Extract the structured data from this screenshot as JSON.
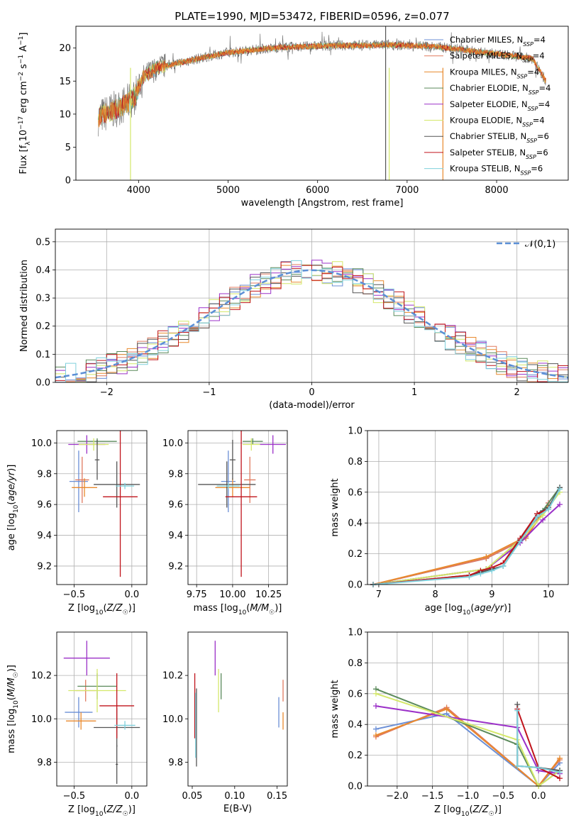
{
  "figure_title": "PLATE=1990, MJD=53472, FIBERID=0596, z=0.077",
  "colors": {
    "Chabrier MILES": "#6b8fd6",
    "Salpeter MILES": "#e07a5f",
    "Kroupa MILES": "#e8892d",
    "Chabrier ELODIE": "#5b8a5b",
    "Salpeter ELODIE": "#9b30c8",
    "Kroupa ELODIE": "#d4e86a",
    "Chabrier STELIB": "#555555",
    "Salpeter STELIB": "#c0141c",
    "Kroupa STELIB": "#7fd0dc",
    "gaussian": "#5b8fd6"
  },
  "legend_labels": [
    "Chabrier MILES, N_SSP=4",
    "Salpeter MILES, N_SSP=4",
    "Kroupa MILES, N_SSP=4",
    "Chabrier ELODIE, N_SSP=4",
    "Salpeter ELODIE, N_SSP=4",
    "Kroupa ELODIE, N_SSP=4",
    "Chabrier STELIB, N_SSP=6",
    "Salpeter STELIB, N_SSP=6",
    "Kroupa STELIB, N_SSP=6"
  ],
  "chart_data": [
    {
      "id": "spectrum",
      "type": "line",
      "title": "PLATE=1990, MJD=53472, FIBERID=0596, z=0.077",
      "xlabel": "wavelength [Angstrom, rest frame]",
      "ylabel": "Flux [f_λ 10^-17 erg cm^-2 s^-1 A^-1]",
      "xlim": [
        3300,
        8800
      ],
      "ylim": [
        0,
        23.3
      ],
      "xticks": [
        4000,
        5000,
        6000,
        7000,
        8000
      ],
      "yticks": [
        0,
        5,
        10,
        15,
        20
      ],
      "spectrum_envelope": {
        "x": [
          3550,
          3650,
          3750,
          3850,
          3950,
          4050,
          4200,
          4400,
          4600,
          4800,
          5000,
          5200,
          5400,
          5600,
          5800,
          6000,
          6200,
          6400,
          6600,
          6800,
          7000,
          7200,
          7400,
          7600,
          7800,
          8000,
          8200,
          8400,
          8550
        ],
        "y": [
          9.5,
          10.2,
          10.8,
          11.5,
          12.5,
          15.5,
          17.0,
          17.6,
          18.2,
          18.8,
          19.3,
          19.6,
          19.9,
          20.1,
          20.2,
          20.3,
          20.4,
          20.4,
          20.4,
          20.5,
          20.4,
          20.3,
          20.1,
          19.8,
          19.4,
          19.1,
          18.8,
          18.4,
          15.0
        ]
      },
      "legend": "top-right"
    },
    {
      "id": "residuals",
      "type": "histogram",
      "xlabel": "(data-model)/error",
      "ylabel": "Normed distribution",
      "xlim": [
        -2.5,
        2.5
      ],
      "ylim": [
        0,
        0.545
      ],
      "xticks": [
        -2,
        -1,
        0,
        1,
        2
      ],
      "yticks": [
        0.0,
        0.1,
        0.2,
        0.3,
        0.4,
        0.5
      ],
      "bin_width": 0.1,
      "reference_curve": "𝒩(0,1)",
      "legend": "top-right"
    },
    {
      "id": "age_vs_Z",
      "type": "errorbar",
      "xlabel": "Z [log10(Z/Z☉)]",
      "ylabel": "age [log10(age/yr)]",
      "xlim": [
        -0.65,
        0.13
      ],
      "ylim": [
        9.08,
        10.08
      ],
      "xticks": [
        -0.5,
        0.0
      ],
      "yticks": [
        9.2,
        9.4,
        9.6,
        9.8,
        10.0
      ],
      "points": [
        {
          "series": "Chabrier MILES",
          "x": -0.46,
          "y": 9.75,
          "xerr": 0.08,
          "yerr": 0.2
        },
        {
          "series": "Salpeter MILES",
          "x": -0.43,
          "y": 9.76,
          "xerr": 0.06,
          "yerr": 0.15
        },
        {
          "series": "Kroupa MILES",
          "x": -0.41,
          "y": 9.71,
          "xerr": 0.11,
          "yerr": 0.06
        },
        {
          "series": "Chabrier ELODIE",
          "x": -0.3,
          "y": 10.01,
          "xerr": 0.17,
          "yerr": 0.02
        },
        {
          "series": "Salpeter ELODIE",
          "x": -0.39,
          "y": 9.99,
          "xerr": 0.16,
          "yerr": 0.06
        },
        {
          "series": "Kroupa ELODIE",
          "x": -0.33,
          "y": 9.99,
          "xerr": 0.13,
          "yerr": 0.04
        },
        {
          "series": "Chabrier STELIB",
          "x": -0.13,
          "y": 9.73,
          "xerr": 0.2,
          "yerr": 0.15
        },
        {
          "series": "Salpeter STELIB",
          "x": -0.1,
          "y": 9.65,
          "xerr": 0.15,
          "yerr": 0.52
        },
        {
          "series": "Kroupa STELIB",
          "x": -0.06,
          "y": 9.72,
          "xerr": 0.08,
          "yerr": 0.02
        },
        {
          "series": "Chabrier STELIB",
          "x": -0.3,
          "y": 9.89,
          "xerr": 0.02,
          "yerr": 0.13
        }
      ]
    },
    {
      "id": "age_vs_mass",
      "type": "errorbar",
      "xlabel": "mass [log10(M/M☉)]",
      "ylabel": "",
      "xlim": [
        9.69,
        10.38
      ],
      "ylim": [
        9.08,
        10.08
      ],
      "xticks": [
        9.75,
        10.0,
        10.25
      ],
      "yticks": [
        9.2,
        9.4,
        9.6,
        9.8,
        10.0
      ],
      "points": [
        {
          "series": "Chabrier MILES",
          "x": 9.97,
          "y": 9.75,
          "xerr": 0.05,
          "yerr": 0.2
        },
        {
          "series": "Salpeter MILES",
          "x": 10.12,
          "y": 9.76,
          "xerr": 0.04,
          "yerr": 0.15
        },
        {
          "series": "Kroupa MILES",
          "x": 10.0,
          "y": 9.71,
          "xerr": 0.12,
          "yerr": 0.06
        },
        {
          "series": "Chabrier ELODIE",
          "x": 10.14,
          "y": 10.01,
          "xerr": 0.07,
          "yerr": 0.02
        },
        {
          "series": "Salpeter ELODIE",
          "x": 10.28,
          "y": 9.99,
          "xerr": 0.09,
          "yerr": 0.06
        },
        {
          "series": "Kroupa ELODIE",
          "x": 10.13,
          "y": 9.99,
          "xerr": 0.06,
          "yerr": 0.04
        },
        {
          "series": "Chabrier STELIB",
          "x": 9.96,
          "y": 9.73,
          "xerr": 0.2,
          "yerr": 0.15
        },
        {
          "series": "Salpeter STELIB",
          "x": 10.06,
          "y": 9.65,
          "xerr": 0.11,
          "yerr": 0.52
        },
        {
          "series": "Kroupa STELIB",
          "x": 9.97,
          "y": 9.72,
          "xerr": 0.08,
          "yerr": 0.02
        },
        {
          "series": "Chabrier STELIB",
          "x": 10.0,
          "y": 9.89,
          "xerr": 0.02,
          "yerr": 0.13
        }
      ]
    },
    {
      "id": "weight_vs_age",
      "type": "line",
      "xlabel": "age [log10(age/yr)]",
      "ylabel": "mass weight",
      "xlim": [
        6.8,
        10.35
      ],
      "ylim": [
        0,
        1.0
      ],
      "xticks": [
        7,
        8,
        9,
        10
      ],
      "yticks": [
        0.0,
        0.2,
        0.4,
        0.6,
        0.8,
        1.0
      ],
      "series": [
        {
          "name": "Chabrier MILES",
          "x": [
            6.9,
            8.9,
            9.6,
            10.0
          ],
          "y": [
            0.0,
            0.17,
            0.3,
            0.53
          ]
        },
        {
          "name": "Salpeter MILES",
          "x": [
            6.9,
            8.9,
            9.6,
            10.0
          ],
          "y": [
            0.0,
            0.17,
            0.3,
            0.53
          ]
        },
        {
          "name": "Kroupa MILES",
          "x": [
            6.9,
            8.9,
            9.6,
            10.0
          ],
          "y": [
            0.0,
            0.18,
            0.31,
            0.51
          ]
        },
        {
          "name": "Chabrier ELODIE",
          "x": [
            6.9,
            8.9,
            9.5,
            9.9,
            10.2
          ],
          "y": [
            0.0,
            0.1,
            0.29,
            0.48,
            0.63
          ]
        },
        {
          "name": "Salpeter ELODIE",
          "x": [
            6.9,
            8.9,
            9.5,
            9.9,
            10.2
          ],
          "y": [
            0.0,
            0.1,
            0.27,
            0.42,
            0.52
          ]
        },
        {
          "name": "Kroupa ELODIE",
          "x": [
            6.9,
            8.9,
            9.5,
            9.9,
            10.2
          ],
          "y": [
            0.0,
            0.1,
            0.29,
            0.45,
            0.6
          ]
        },
        {
          "name": "Chabrier STELIB",
          "x": [
            6.9,
            8.6,
            8.8,
            9.0,
            9.2,
            9.5,
            9.8,
            10.0,
            10.2
          ],
          "y": [
            0.0,
            0.06,
            0.08,
            0.1,
            0.12,
            0.29,
            0.46,
            0.5,
            0.63
          ]
        },
        {
          "name": "Salpeter STELIB",
          "x": [
            6.9,
            8.6,
            8.8,
            9.0,
            9.2,
            9.5,
            9.8,
            10.0
          ],
          "y": [
            0.0,
            0.06,
            0.09,
            0.11,
            0.14,
            0.3,
            0.46,
            0.49
          ]
        },
        {
          "name": "Kroupa STELIB",
          "x": [
            6.9,
            8.6,
            8.8,
            9.0,
            9.2,
            9.5,
            9.8,
            10.0,
            10.2
          ],
          "y": [
            0.0,
            0.05,
            0.07,
            0.09,
            0.12,
            0.28,
            0.44,
            0.49,
            0.62
          ]
        }
      ]
    },
    {
      "id": "mass_vs_Z",
      "type": "errorbar",
      "xlabel": "Z [log10(Z/Z☉)]",
      "ylabel": "mass [log10(M/M☉)]",
      "xlim": [
        -0.65,
        0.13
      ],
      "ylim": [
        9.69,
        10.4
      ],
      "xticks": [
        -0.5,
        0.0
      ],
      "yticks": [
        9.8,
        10.0,
        10.2
      ],
      "points": [
        {
          "series": "Chabrier MILES",
          "x": -0.46,
          "y": 10.03,
          "xerr": 0.12,
          "yerr": 0.07
        },
        {
          "series": "Salpeter MILES",
          "x": -0.4,
          "y": 10.13,
          "xerr": 0.09,
          "yerr": 0.05
        },
        {
          "series": "Kroupa MILES",
          "x": -0.44,
          "y": 9.99,
          "xerr": 0.13,
          "yerr": 0.04
        },
        {
          "series": "Chabrier ELODIE",
          "x": -0.3,
          "y": 10.15,
          "xerr": 0.17,
          "yerr": 0.06
        },
        {
          "series": "Salpeter ELODIE",
          "x": -0.39,
          "y": 10.28,
          "xerr": 0.2,
          "yerr": 0.08
        },
        {
          "series": "Kroupa ELODIE",
          "x": -0.3,
          "y": 10.13,
          "xerr": 0.25,
          "yerr": 0.1
        },
        {
          "series": "Chabrier STELIB",
          "x": -0.13,
          "y": 9.96,
          "xerr": 0.2,
          "yerr": 0.09
        },
        {
          "series": "Salpeter STELIB",
          "x": -0.13,
          "y": 10.06,
          "xerr": 0.15,
          "yerr": 0.15
        },
        {
          "series": "Kroupa STELIB",
          "x": -0.06,
          "y": 9.97,
          "xerr": 0.09,
          "yerr": 0.02
        },
        {
          "series": "Chabrier STELIB",
          "x": -0.13,
          "y": 9.79,
          "xerr": 0.01,
          "yerr": 0.09
        }
      ]
    },
    {
      "id": "mass_vs_EBV",
      "type": "errorbar",
      "xlabel": "E(B-V)",
      "ylabel": "",
      "xlim": [
        0.045,
        0.162
      ],
      "ylim": [
        9.69,
        10.4
      ],
      "xticks": [
        0.05,
        0.1,
        0.15
      ],
      "yticks": [
        9.8,
        10.0,
        10.2
      ],
      "points": [
        {
          "series": "Chabrier MILES",
          "x": 0.152,
          "y": 10.03,
          "xerr": 0.0,
          "yerr": 0.07
        },
        {
          "series": "Salpeter MILES",
          "x": 0.157,
          "y": 10.13,
          "xerr": 0.0,
          "yerr": 0.05
        },
        {
          "series": "Kroupa MILES",
          "x": 0.157,
          "y": 9.99,
          "xerr": 0.0,
          "yerr": 0.04
        },
        {
          "series": "Chabrier ELODIE",
          "x": 0.084,
          "y": 10.15,
          "xerr": 0.0,
          "yerr": 0.06
        },
        {
          "series": "Salpeter ELODIE",
          "x": 0.077,
          "y": 10.28,
          "xerr": 0.0,
          "yerr": 0.08
        },
        {
          "series": "Kroupa ELODIE",
          "x": 0.081,
          "y": 10.13,
          "xerr": 0.0,
          "yerr": 0.1
        },
        {
          "series": "Chabrier STELIB",
          "x": 0.055,
          "y": 9.96,
          "xerr": 0.0,
          "yerr": 0.18
        },
        {
          "series": "Salpeter STELIB",
          "x": 0.053,
          "y": 10.06,
          "xerr": 0.0,
          "yerr": 0.15
        },
        {
          "series": "Kroupa STELIB",
          "x": 0.054,
          "y": 9.97,
          "xerr": 0.0,
          "yerr": 0.15
        }
      ]
    },
    {
      "id": "weight_vs_Z",
      "type": "line",
      "xlabel": "Z [log10(Z/Z☉)]",
      "ylabel": "mass weight",
      "xlim": [
        -2.42,
        0.42
      ],
      "ylim": [
        0,
        1.0
      ],
      "xticks": [
        -2.0,
        -1.5,
        -1.0,
        -0.5,
        0.0
      ],
      "yticks": [
        0.0,
        0.2,
        0.4,
        0.6,
        0.8,
        1.0
      ],
      "series": [
        {
          "name": "Chabrier MILES",
          "x": [
            -2.3,
            -1.3,
            0.0,
            0.3
          ],
          "y": [
            0.37,
            0.47,
            0.0,
            0.15
          ]
        },
        {
          "name": "Salpeter MILES",
          "x": [
            -2.3,
            -1.3,
            0.0,
            0.3
          ],
          "y": [
            0.32,
            0.51,
            0.0,
            0.17
          ]
        },
        {
          "name": "Kroupa MILES",
          "x": [
            -2.3,
            -1.3,
            0.0,
            0.3
          ],
          "y": [
            0.33,
            0.5,
            0.0,
            0.18
          ]
        },
        {
          "name": "Chabrier ELODIE",
          "x": [
            -2.3,
            -0.3,
            0.0,
            0.3
          ],
          "y": [
            0.63,
            0.27,
            0.0,
            0.1
          ]
        },
        {
          "name": "Salpeter ELODIE",
          "x": [
            -2.3,
            -0.3,
            0.0,
            0.3
          ],
          "y": [
            0.52,
            0.38,
            0.1,
            0.08
          ]
        },
        {
          "name": "Kroupa ELODIE",
          "x": [
            -2.3,
            -0.3,
            0.0,
            0.3
          ],
          "y": [
            0.6,
            0.3,
            0.0,
            0.1
          ]
        },
        {
          "name": "Chabrier STELIB",
          "x": [
            -0.3,
            -0.3,
            0.0,
            0.3
          ],
          "y": [
            0.53,
            0.13,
            0.12,
            0.1
          ]
        },
        {
          "name": "Salpeter STELIB",
          "x": [
            -0.3,
            0.0,
            0.3
          ],
          "y": [
            0.5,
            0.12,
            0.05
          ]
        },
        {
          "name": "Kroupa STELIB",
          "x": [
            -0.3,
            -0.3,
            0.0,
            0.3
          ],
          "y": [
            0.49,
            0.13,
            0.12,
            0.09
          ]
        }
      ]
    }
  ]
}
